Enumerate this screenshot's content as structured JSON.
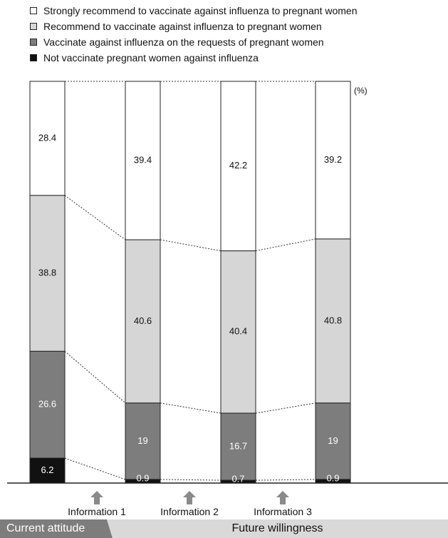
{
  "chart_data": {
    "type": "bar",
    "stacked": true,
    "percent_label": "(%)",
    "categories": [
      "",
      "",
      "",
      ""
    ],
    "series": [
      {
        "name": "Strongly recommend to vaccinate against influenza to pregnant women",
        "color": "#ffffff",
        "label_color": "#111111",
        "values": [
          28.4,
          39.4,
          42.2,
          39.2
        ]
      },
      {
        "name": "Recommend to vaccinate against influenza to pregnant women",
        "color": "#d6d6d6",
        "label_color": "#111111",
        "values": [
          38.8,
          40.6,
          40.4,
          40.8
        ]
      },
      {
        "name": "Vaccinate against influenza on the requests of pregnant women",
        "color": "#7d7d7d",
        "label_color": "#ffffff",
        "values": [
          26.6,
          19,
          16.7,
          19
        ]
      },
      {
        "name": "Not vaccinate pregnant women against influenza",
        "color": "#111111",
        "label_color": "#ffffff",
        "values": [
          6.2,
          0.9,
          0.7,
          0.9
        ]
      }
    ],
    "ylim": [
      0,
      100
    ],
    "grid": false,
    "legend": "top-left",
    "arrows": [
      "Information 1",
      "Information 2",
      "Information 3"
    ],
    "footer": {
      "current": "Current attitude",
      "future": "Future willingness"
    }
  }
}
